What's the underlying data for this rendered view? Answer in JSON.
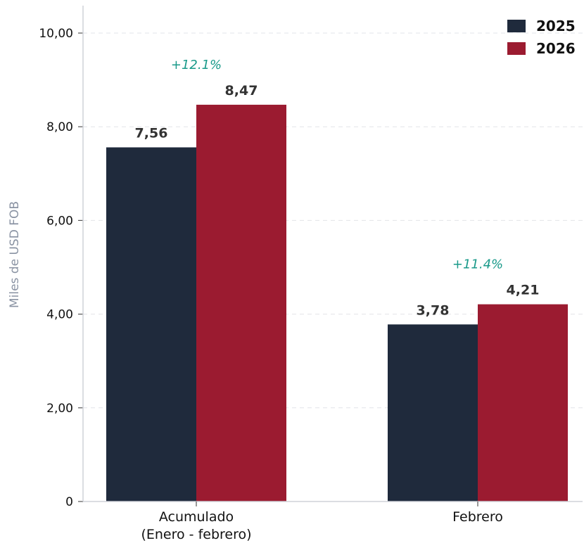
{
  "chart_data": {
    "type": "bar",
    "categories": [
      "Acumulado\n(Enero - febrero)",
      "Febrero"
    ],
    "series": [
      {
        "name": "2025",
        "values": [
          7.56,
          3.78
        ],
        "labels": [
          "7,56",
          "3,78"
        ],
        "color": "#1f2a3c"
      },
      {
        "name": "2026",
        "values": [
          8.47,
          4.21
        ],
        "labels": [
          "8,47",
          "4,21"
        ],
        "color": "#9b1b30"
      }
    ],
    "annotations": [
      "+12.1%",
      "+11.4%"
    ],
    "annotation_color": "#1a9a8a",
    "ylabel": "Miles de USD FOB",
    "ylim": [
      0,
      10.5
    ],
    "yticks": [
      0,
      2,
      4,
      6,
      8,
      10
    ],
    "ytick_labels": [
      "0",
      "2,00",
      "4,00",
      "6,00",
      "8,00",
      "10,00"
    ],
    "grid": "horizontal-dashed",
    "legend_position": "top-right"
  }
}
